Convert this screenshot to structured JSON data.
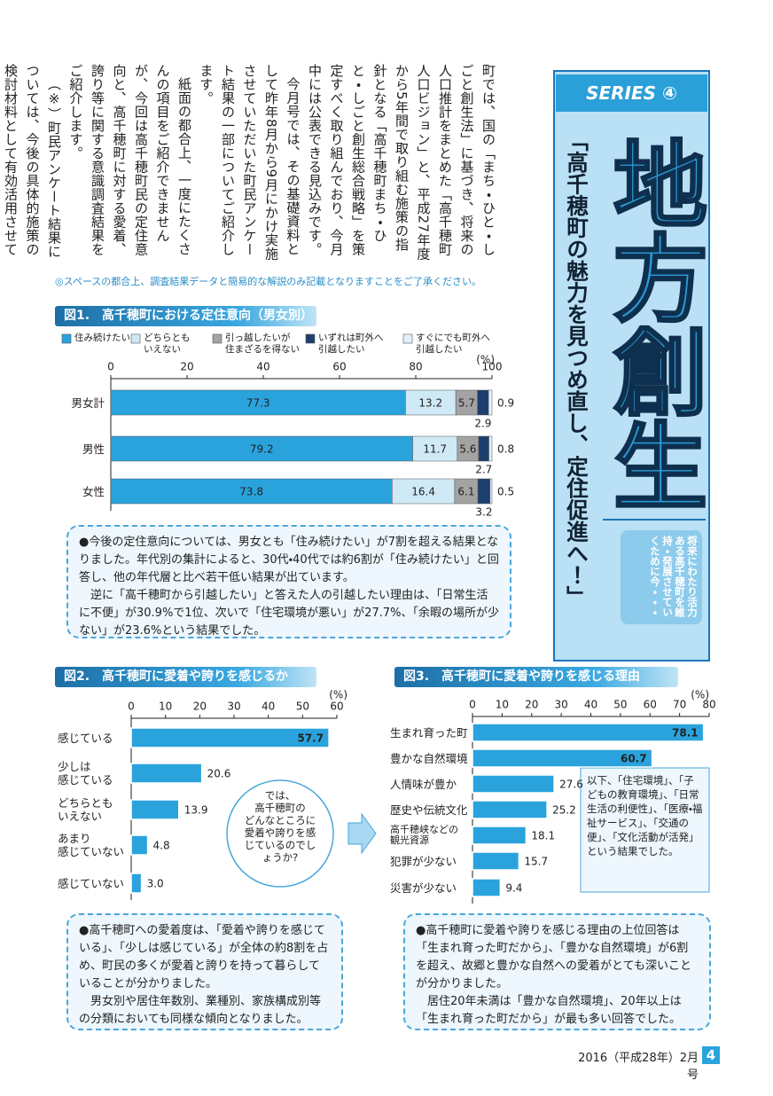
{
  "article": {
    "paragraphs": [
      "町では、国の「まち・ひと・しごと創生法」に基づき、将来の人口推計をまとめた「高千穂町人口ビジョン」と、平成27年度から5年間で取り組む施策の指針となる「高千穂町まち・ひと・しごと創生総合戦略」を策定すべく取り組んでおり、今月中には公表できる見込みです。",
      "今月号では、その基礎資料として昨年8月から9月にかけ実施させていただいた町民アンケート結果の一部についてご紹介します。",
      "紙面の都合上、一度にたくさんの項目をご紹介できませんが、今回は高千穂町民の定住意向と、高千穂町に対する愛着、誇り等に関する意識調査結果をご紹介します。",
      "（※）町民アンケート結果については、今後の具体的施策の検討材料として有効活用させていただきます。"
    ]
  },
  "sidebar": {
    "series": "SERIES ④",
    "title": "地方創生",
    "subtitle": "「高千穂町の魅力を見つめ直し、定住促進へ！」",
    "note": "将来にわたり活力ある高千穂町を維持・発展させていくために今・・・"
  },
  "notice": "◎スペースの都合上、調査結果データと簡易的な解説のみ記載となりますことをご了承ください。",
  "chart_data": [
    {
      "type": "stacked_bar",
      "title": "図1.　高千穂町における定住意向（男女別）",
      "unit_label": "(%)",
      "categories": [
        "男女計",
        "男性",
        "女性"
      ],
      "series": [
        {
          "name": "住み続けたい",
          "color": "#2aa3dd",
          "values": [
            77.3,
            79.2,
            73.8
          ]
        },
        {
          "name": "どちらとも\nいえない",
          "color": "#cfe9f7",
          "values": [
            13.2,
            11.7,
            16.4
          ]
        },
        {
          "name": "引っ越したいが\n住まざるを得ない",
          "color": "#a3a3a3",
          "values": [
            5.7,
            5.6,
            6.1
          ]
        },
        {
          "name": "いずれは町外へ\n引越したい",
          "color": "#1d3f6e",
          "values": [
            2.9,
            2.7,
            3.2
          ]
        },
        {
          "name": "すぐにでも町外へ\n引越したい",
          "color": "#e2f2fb",
          "values": [
            0.9,
            0.8,
            0.5
          ]
        }
      ],
      "xlim": [
        0,
        100
      ],
      "xticks": [
        0,
        20,
        40,
        60,
        80,
        100
      ]
    },
    {
      "type": "bar",
      "title": "図2.　高千穂町に愛着や誇りを感じるか",
      "unit_label": "(%)",
      "categories": [
        "感じている",
        "少しは\n感じている",
        "どちらとも\nいえない",
        "あまり\n感じていない",
        "感じていない"
      ],
      "values": [
        57.7,
        20.6,
        13.9,
        4.8,
        3.0
      ],
      "value_labels": [
        "57.7",
        "20.6",
        "13.9",
        "4.8",
        "3.0"
      ],
      "color": "#2aa3dd",
      "xlim": [
        0,
        60
      ],
      "xticks": [
        0,
        10,
        20,
        30,
        40,
        50,
        60
      ],
      "annotation": "では、\n高千穂町の\nどんなところに\n愛着や誇りを感\nじているのでし\nょうか?"
    },
    {
      "type": "bar",
      "title": "図3.　高千穂町に愛着や誇りを感じる理由",
      "unit_label": "(%)",
      "categories": [
        "生まれ育った町",
        "豊かな自然環境",
        "人情味が豊か",
        "歴史や伝統文化",
        "高千穂峡などの\n観光資源",
        "犯罪が少ない",
        "災害が少ない"
      ],
      "values": [
        78.1,
        60.7,
        27.6,
        25.2,
        18.1,
        15.7,
        9.4
      ],
      "color": "#2aa3dd",
      "xlim": [
        0,
        80
      ],
      "xticks": [
        0,
        10,
        20,
        30,
        40,
        50,
        60,
        70,
        80
      ],
      "annotation": "以下、「住宅環境」、「子どもの教育環境」、「日常生活の利便性」、「医療・福祉サービス」、「交通の便」、「文化活動が活発」という結果でした。"
    }
  ],
  "comments": [
    [
      "●今後の定住意向については、男女とも「住み続けたい」が7割を超える結果となりました。年代別の集計によると、30代・40代では約6割が「住み続けたい」と回答し、他の年代層と比べ若干低い結果が出ています。",
      "逆に「高千穂町から引越したい」と答えた人の引越したい理由は、「日常生活に不便」が30.9%で1位、次いで「住宅環境が悪い」が27.7%、「余暇の場所が少ない」が23.6%という結果でした。"
    ],
    [
      "●高千穂町への愛着度は、「愛着や誇りを感じている」、「少しは感じている」が全体の約8割を占め、町民の多くが愛着と誇りを持って暮らしていることが分かりました。",
      "男女別や居住年数別、業種別、家族構成別等の分類においても同様な傾向となりました。"
    ],
    [
      "●高千穂町に愛着や誇りを感じる理由の上位回答は「生まれ育った町だから」、「豊かな自然環境」が6割を超え、故郷と豊かな自然への愛着がとても深いことが分かりました。",
      "居住20年未満は「豊かな自然環境」、20年以上は「生まれ育った町だから」が最も多い回答でした。"
    ]
  ],
  "footer": {
    "issue": "2016（平成28年）2月号",
    "page": "4"
  }
}
